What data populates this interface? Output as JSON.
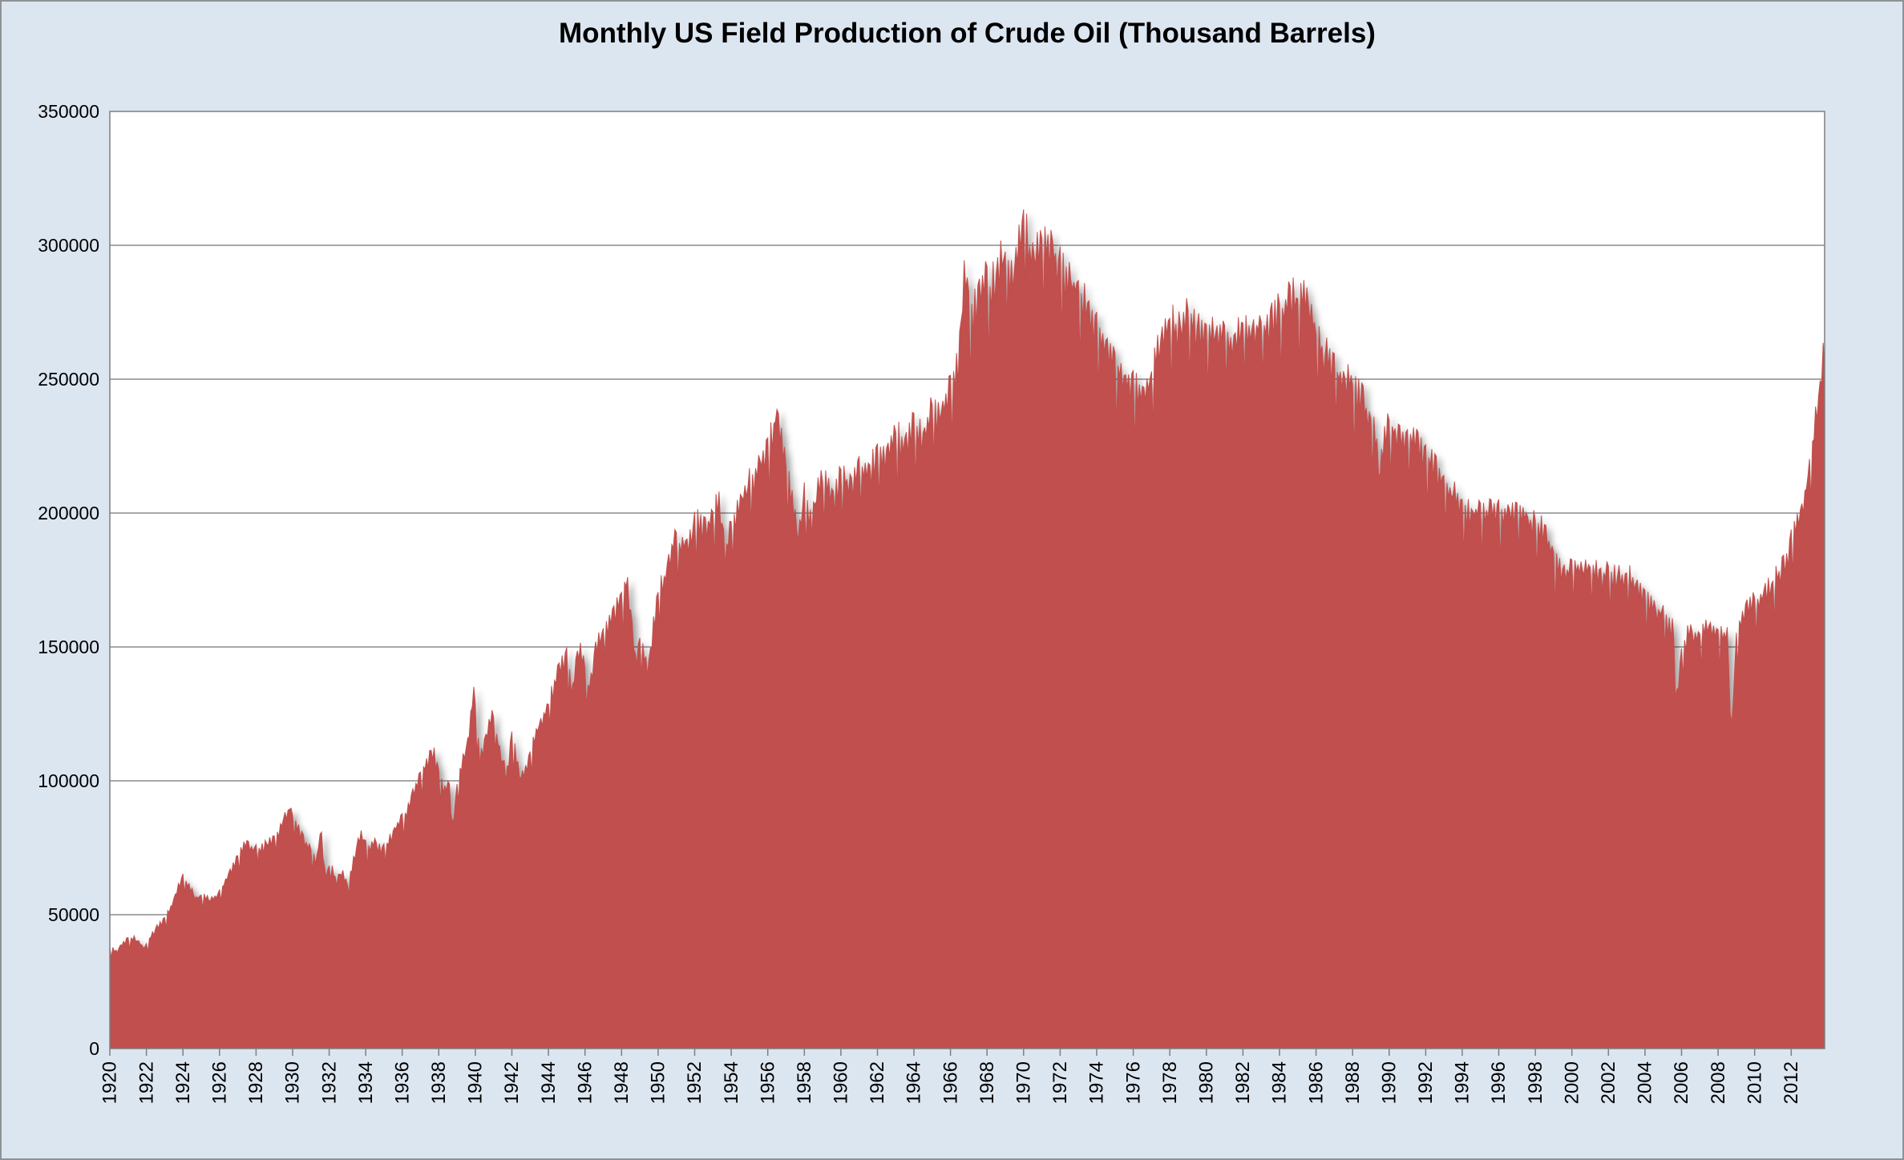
{
  "chart_data": {
    "type": "area",
    "title": "Monthly US Field Production of Crude Oil (Thousand Barrels)",
    "xlabel": "",
    "ylabel": "",
    "legend": "none",
    "grid": "horizontal",
    "colors": {
      "background": "#dce6f1",
      "plot_background": "#ffffff",
      "area_fill": "#c0504d",
      "gridline": "#8c8c8c",
      "axis_line": "#7f7f7f",
      "text": "#000000",
      "frame_border": "#8e9296"
    },
    "y_axis": {
      "min": 0,
      "max": 350000,
      "step": 50000,
      "tick_labels": [
        "0",
        "50000",
        "100000",
        "150000",
        "200000",
        "250000",
        "300000",
        "350000"
      ]
    },
    "x_axis": {
      "start": 1920,
      "data_end": 2013.83,
      "tick_step_years": 2,
      "tick_labels": [
        "1920",
        "1922",
        "1924",
        "1926",
        "1928",
        "1930",
        "1932",
        "1934",
        "1936",
        "1938",
        "1940",
        "1942",
        "1944",
        "1946",
        "1948",
        "1950",
        "1952",
        "1954",
        "1956",
        "1958",
        "1960",
        "1962",
        "1964",
        "1966",
        "1968",
        "1970",
        "1972",
        "1974",
        "1976",
        "1978",
        "1980",
        "1982",
        "1984",
        "1986",
        "1988",
        "1990",
        "1992",
        "1994",
        "1996",
        "1998",
        "2000",
        "2002",
        "2004",
        "2006",
        "2008",
        "2010",
        "2012"
      ]
    },
    "series": {
      "name": "Monthly US field production of crude oil",
      "unit": "thousand barrels per month",
      "sampling": "monthly values digitized as [year, value] envelope anchors",
      "anchors": [
        [
          1920.0,
          37000
        ],
        [
          1920.4,
          36300
        ],
        [
          1920.8,
          39800
        ],
        [
          1921.3,
          41300
        ],
        [
          1921.9,
          37600
        ],
        [
          1922.4,
          43600
        ],
        [
          1922.8,
          46500
        ],
        [
          1923.3,
          52000
        ],
        [
          1923.7,
          59000
        ],
        [
          1924.0,
          64500
        ],
        [
          1924.35,
          60000
        ],
        [
          1924.7,
          55600
        ],
        [
          1925.1,
          57400
        ],
        [
          1925.5,
          54900
        ],
        [
          1925.9,
          57200
        ],
        [
          1926.3,
          61600
        ],
        [
          1926.7,
          67400
        ],
        [
          1927.1,
          72400
        ],
        [
          1927.5,
          76400
        ],
        [
          1927.9,
          74100
        ],
        [
          1928.4,
          74600
        ],
        [
          1928.8,
          77400
        ],
        [
          1929.2,
          80100
        ],
        [
          1929.6,
          86200
        ],
        [
          1929.85,
          89900
        ],
        [
          1930.2,
          82600
        ],
        [
          1930.6,
          78400
        ],
        [
          1931.0,
          73600
        ],
        [
          1931.3,
          70400
        ],
        [
          1931.55,
          80400
        ],
        [
          1931.8,
          64100
        ],
        [
          1932.1,
          68900
        ],
        [
          1932.4,
          61600
        ],
        [
          1932.7,
          66100
        ],
        [
          1933.0,
          60400
        ],
        [
          1933.4,
          72100
        ],
        [
          1933.75,
          80900
        ],
        [
          1934.1,
          74200
        ],
        [
          1934.5,
          76400
        ],
        [
          1934.9,
          73100
        ],
        [
          1935.3,
          77600
        ],
        [
          1935.7,
          82400
        ],
        [
          1936.1,
          86600
        ],
        [
          1936.5,
          92400
        ],
        [
          1936.9,
          99600
        ],
        [
          1937.3,
          105400
        ],
        [
          1937.7,
          110400
        ],
        [
          1938.0,
          103600
        ],
        [
          1938.3,
          94600
        ],
        [
          1938.55,
          99100
        ],
        [
          1938.75,
          83600
        ],
        [
          1939.0,
          97600
        ],
        [
          1939.3,
          106400
        ],
        [
          1939.6,
          113600
        ],
        [
          1939.9,
          134000
        ],
        [
          1940.25,
          108500
        ],
        [
          1940.6,
          115500
        ],
        [
          1940.9,
          126600
        ],
        [
          1941.3,
          112000
        ],
        [
          1941.7,
          101600
        ],
        [
          1942.0,
          116000
        ],
        [
          1942.5,
          99100
        ],
        [
          1942.9,
          108400
        ],
        [
          1943.5,
          120400
        ],
        [
          1944.0,
          127400
        ],
        [
          1944.6,
          141000
        ],
        [
          1945.0,
          146000
        ],
        [
          1945.3,
          132100
        ],
        [
          1945.7,
          149900
        ],
        [
          1946.2,
          133100
        ],
        [
          1946.6,
          148400
        ],
        [
          1947.0,
          155100
        ],
        [
          1947.5,
          160100
        ],
        [
          1948.0,
          167400
        ],
        [
          1948.3,
          174100
        ],
        [
          1948.75,
          145100
        ],
        [
          1949.05,
          153900
        ],
        [
          1949.4,
          139600
        ],
        [
          1949.8,
          160100
        ],
        [
          1950.1,
          170100
        ],
        [
          1950.5,
          179100
        ],
        [
          1950.9,
          190400
        ],
        [
          1951.3,
          186100
        ],
        [
          1951.8,
          191900
        ],
        [
          1952.2,
          196100
        ],
        [
          1952.6,
          192900
        ],
        [
          1953.0,
          198900
        ],
        [
          1953.3,
          203900
        ],
        [
          1953.65,
          184100
        ],
        [
          1954.0,
          194900
        ],
        [
          1954.5,
          202900
        ],
        [
          1955.0,
          209900
        ],
        [
          1955.5,
          215900
        ],
        [
          1955.9,
          221900
        ],
        [
          1956.2,
          227900
        ],
        [
          1956.5,
          236400
        ],
        [
          1956.8,
          224900
        ],
        [
          1957.1,
          210900
        ],
        [
          1957.35,
          206400
        ],
        [
          1957.6,
          189600
        ],
        [
          1958.0,
          205400
        ],
        [
          1958.4,
          196100
        ],
        [
          1958.8,
          209400
        ],
        [
          1959.2,
          211900
        ],
        [
          1959.6,
          203600
        ],
        [
          1960.0,
          214400
        ],
        [
          1960.5,
          208100
        ],
        [
          1961.0,
          217400
        ],
        [
          1961.5,
          212600
        ],
        [
          1962.0,
          221900
        ],
        [
          1962.5,
          217100
        ],
        [
          1963.0,
          228400
        ],
        [
          1963.5,
          222600
        ],
        [
          1964.0,
          231900
        ],
        [
          1964.5,
          228100
        ],
        [
          1965.0,
          236900
        ],
        [
          1965.5,
          235100
        ],
        [
          1966.0,
          245900
        ],
        [
          1966.4,
          252400
        ],
        [
          1966.8,
          291400
        ],
        [
          1967.05,
          271100
        ],
        [
          1967.3,
          273900
        ],
        [
          1967.6,
          280900
        ],
        [
          1967.9,
          285400
        ],
        [
          1968.2,
          282900
        ],
        [
          1968.5,
          287900
        ],
        [
          1968.8,
          295400
        ],
        [
          1969.1,
          291900
        ],
        [
          1969.4,
          285600
        ],
        [
          1969.7,
          297400
        ],
        [
          1970.08,
          309400
        ],
        [
          1970.35,
          296600
        ],
        [
          1970.6,
          291600
        ],
        [
          1970.9,
          299400
        ],
        [
          1971.2,
          296900
        ],
        [
          1971.6,
          296400
        ],
        [
          1972.0,
          289900
        ],
        [
          1972.4,
          284600
        ],
        [
          1972.9,
          282900
        ],
        [
          1973.3,
          277400
        ],
        [
          1973.6,
          273900
        ],
        [
          1974.0,
          266900
        ],
        [
          1974.3,
          261900
        ],
        [
          1974.7,
          258400
        ],
        [
          1975.1,
          254900
        ],
        [
          1975.5,
          250400
        ],
        [
          1975.9,
          247900
        ],
        [
          1976.3,
          245400
        ],
        [
          1976.6,
          243400
        ],
        [
          1976.9,
          248400
        ],
        [
          1977.2,
          254900
        ],
        [
          1977.5,
          262400
        ],
        [
          1977.8,
          266400
        ],
        [
          1978.1,
          269900
        ],
        [
          1978.5,
          267400
        ],
        [
          1978.9,
          271400
        ],
        [
          1979.3,
          268400
        ],
        [
          1979.7,
          265400
        ],
        [
          1980.1,
          267400
        ],
        [
          1980.5,
          263900
        ],
        [
          1980.9,
          266400
        ],
        [
          1981.3,
          264400
        ],
        [
          1981.7,
          265900
        ],
        [
          1982.1,
          267400
        ],
        [
          1982.5,
          265900
        ],
        [
          1982.9,
          269900
        ],
        [
          1983.3,
          268400
        ],
        [
          1983.7,
          271400
        ],
        [
          1984.1,
          274400
        ],
        [
          1984.5,
          281400
        ],
        [
          1984.9,
          277400
        ],
        [
          1985.2,
          279400
        ],
        [
          1985.5,
          275900
        ],
        [
          1985.8,
          272400
        ],
        [
          1986.1,
          262400
        ],
        [
          1986.5,
          257900
        ],
        [
          1986.9,
          254400
        ],
        [
          1987.3,
          250400
        ],
        [
          1987.7,
          248400
        ],
        [
          1988.1,
          244900
        ],
        [
          1988.5,
          240900
        ],
        [
          1988.9,
          235400
        ],
        [
          1989.2,
          230900
        ],
        [
          1989.5,
          212400
        ],
        [
          1989.75,
          227400
        ],
        [
          1990.0,
          232400
        ],
        [
          1990.4,
          228900
        ],
        [
          1990.8,
          226400
        ],
        [
          1991.2,
          228400
        ],
        [
          1991.6,
          223400
        ],
        [
          1992.0,
          220400
        ],
        [
          1992.4,
          216400
        ],
        [
          1992.8,
          212400
        ],
        [
          1993.3,
          206900
        ],
        [
          1993.7,
          204400
        ],
        [
          1994.1,
          201400
        ],
        [
          1994.5,
          199400
        ],
        [
          1994.9,
          200900
        ],
        [
          1995.3,
          198400
        ],
        [
          1995.7,
          200400
        ],
        [
          1996.1,
          197900
        ],
        [
          1996.5,
          200400
        ],
        [
          1996.9,
          197400
        ],
        [
          1997.3,
          199400
        ],
        [
          1997.7,
          196900
        ],
        [
          1998.1,
          195400
        ],
        [
          1998.5,
          190900
        ],
        [
          1998.9,
          185400
        ],
        [
          1999.3,
          177900
        ],
        [
          1999.7,
          176400
        ],
        [
          2000.1,
          179400
        ],
        [
          2000.5,
          176900
        ],
        [
          2000.9,
          178900
        ],
        [
          2001.3,
          177400
        ],
        [
          2001.7,
          175400
        ],
        [
          2002.1,
          176900
        ],
        [
          2002.5,
          174400
        ],
        [
          2003.0,
          175900
        ],
        [
          2003.4,
          172900
        ],
        [
          2003.8,
          169900
        ],
        [
          2004.2,
          166400
        ],
        [
          2004.6,
          162900
        ],
        [
          2005.0,
          162400
        ],
        [
          2005.3,
          158400
        ],
        [
          2005.55,
          155900
        ],
        [
          2005.7,
          128400
        ],
        [
          2005.95,
          143400
        ],
        [
          2006.2,
          152400
        ],
        [
          2006.5,
          155400
        ],
        [
          2006.9,
          152900
        ],
        [
          2007.3,
          156400
        ],
        [
          2007.7,
          153900
        ],
        [
          2008.1,
          155400
        ],
        [
          2008.5,
          152400
        ],
        [
          2008.72,
          116400
        ],
        [
          2009.0,
          153400
        ],
        [
          2009.4,
          160400
        ],
        [
          2009.8,
          164400
        ],
        [
          2010.2,
          167400
        ],
        [
          2010.6,
          169900
        ],
        [
          2011.0,
          173400
        ],
        [
          2011.4,
          176400
        ],
        [
          2011.8,
          183400
        ],
        [
          2012.1,
          190400
        ],
        [
          2012.4,
          196400
        ],
        [
          2012.7,
          204400
        ],
        [
          2012.95,
          213400
        ],
        [
          2013.2,
          225400
        ],
        [
          2013.45,
          238400
        ],
        [
          2013.65,
          251400
        ],
        [
          2013.83,
          259400
        ]
      ],
      "notable_features": {
        "start_1920": 37000,
        "peak_1929": 90000,
        "notch_1938": 84000,
        "spike_1956": 236000,
        "dip_1957_58": 190000,
        "all_time_peak_1970": 309500,
        "trough_1976": 244000,
        "secondary_hump_1985": 281000,
        "katrina_notch_2005": 128000,
        "ike_notch_2008": 116000,
        "end_2013": 259000
      },
      "texture": {
        "month_length_variation": true,
        "noise_frac": 0.015
      }
    }
  }
}
